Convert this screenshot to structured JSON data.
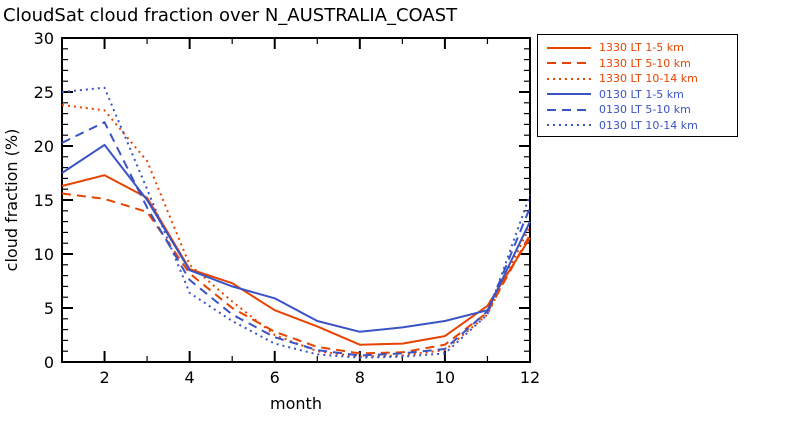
{
  "title": "CloudSat cloud fraction over N_AUSTRALIA_COAST",
  "colors": {
    "red": "#e64400",
    "blue": "#3a53c5",
    "axis": "#000000",
    "background": "#ffffff"
  },
  "chart_data": {
    "type": "line",
    "title": "CloudSat cloud fraction over N_AUSTRALIA_COAST",
    "xlabel": "month",
    "ylabel": "cloud fraction (%)",
    "xlim": [
      1,
      12
    ],
    "ylim": [
      0,
      30
    ],
    "x_major_ticks": [
      2,
      4,
      6,
      8,
      10,
      12
    ],
    "y_major_ticks": [
      0,
      5,
      10,
      15,
      20,
      25,
      30
    ],
    "grid": false,
    "legend_position": "top-right-outside",
    "x": [
      1,
      2,
      3,
      4,
      5,
      6,
      7,
      8,
      9,
      10,
      11,
      12
    ],
    "series": [
      {
        "name": "1330 LT 1-5 km",
        "color": "red",
        "style": "solid",
        "values": [
          16.3,
          17.3,
          15.2,
          8.6,
          7.3,
          4.8,
          3.3,
          1.6,
          1.7,
          2.4,
          5.2,
          11.5
        ]
      },
      {
        "name": "1330 LT 5-10 km",
        "color": "red",
        "style": "dashed",
        "values": [
          15.6,
          15.1,
          13.9,
          8.2,
          5.0,
          2.8,
          1.4,
          0.8,
          0.9,
          1.6,
          4.6,
          11.8
        ]
      },
      {
        "name": "1330 LT 10-14 km",
        "color": "red",
        "style": "dotted",
        "values": [
          23.8,
          23.3,
          18.6,
          9.0,
          5.6,
          2.5,
          1.0,
          0.5,
          0.6,
          1.1,
          4.4,
          12.6
        ]
      },
      {
        "name": "0130 LT 1-5 km",
        "color": "blue",
        "style": "solid",
        "values": [
          17.5,
          20.1,
          15.0,
          8.5,
          7.0,
          5.9,
          3.8,
          2.8,
          3.2,
          3.8,
          4.8,
          13.0
        ]
      },
      {
        "name": "0130 LT 5-10 km",
        "color": "blue",
        "style": "dashed",
        "values": [
          20.3,
          22.2,
          14.3,
          7.6,
          4.4,
          2.3,
          1.1,
          0.6,
          0.8,
          1.2,
          4.7,
          14.3
        ]
      },
      {
        "name": "0130 LT 10-14 km",
        "color": "blue",
        "style": "dotted",
        "values": [
          25.0,
          25.4,
          16.0,
          6.4,
          3.8,
          1.7,
          0.7,
          0.4,
          0.5,
          0.8,
          4.4,
          15.5
        ]
      }
    ]
  }
}
